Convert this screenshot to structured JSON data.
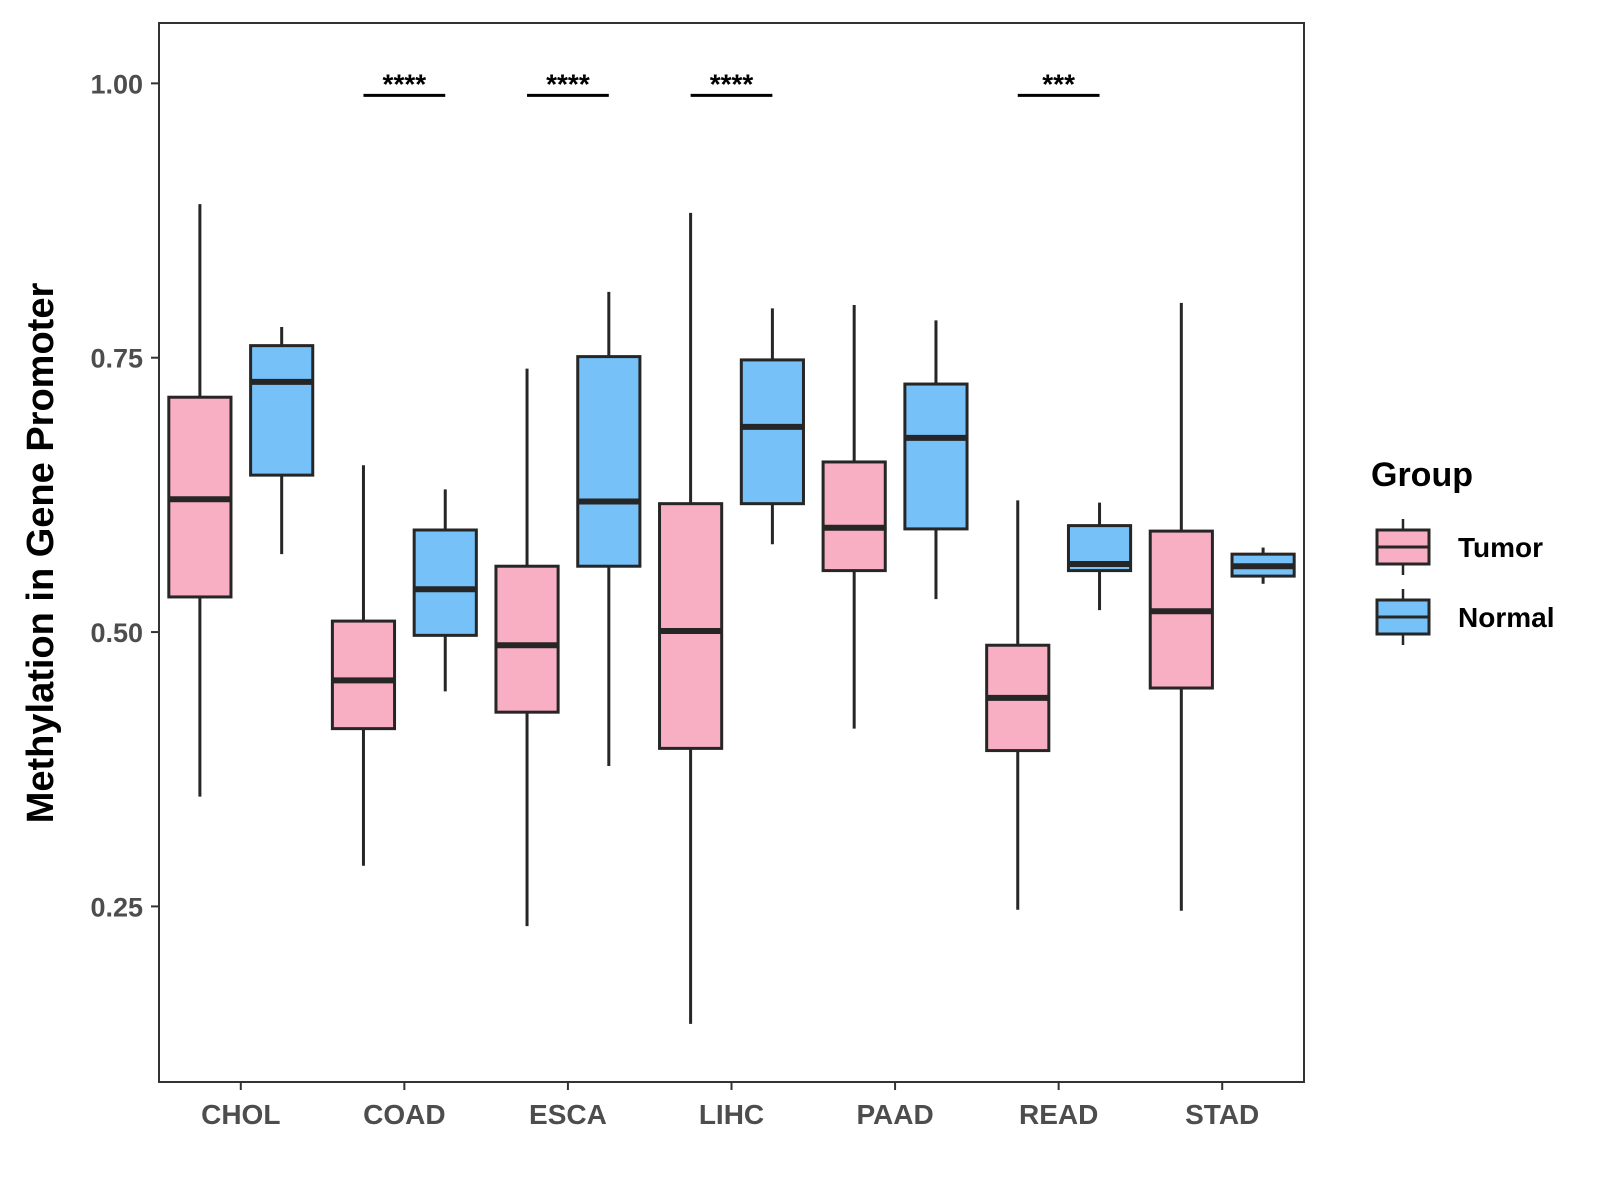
{
  "chart_data": {
    "type": "boxplot",
    "ylabel": "Methylation in Gene Promoter",
    "xlabel": "",
    "ylim": [
      0.09,
      1.055
    ],
    "yticks": [
      {
        "value": 0.25,
        "label": "0.25"
      },
      {
        "value": 0.5,
        "label": "0.50"
      },
      {
        "value": 0.75,
        "label": "0.75"
      },
      {
        "value": 1.0,
        "label": "1.00"
      }
    ],
    "grid": false,
    "categories": [
      "CHOL",
      "COAD",
      "ESCA",
      "LIHC",
      "PAAD",
      "READ",
      "STAD"
    ],
    "series": [
      {
        "name": "Tumor",
        "color": "#F9AFC3",
        "boxes": [
          {
            "min": 0.35,
            "q1": 0.532,
            "median": 0.621,
            "q3": 0.714,
            "max": 0.89
          },
          {
            "min": 0.287,
            "q1": 0.412,
            "median": 0.456,
            "q3": 0.51,
            "max": 0.652
          },
          {
            "min": 0.232,
            "q1": 0.427,
            "median": 0.488,
            "q3": 0.56,
            "max": 0.74
          },
          {
            "min": 0.143,
            "q1": 0.394,
            "median": 0.501,
            "q3": 0.617,
            "max": 0.882
          },
          {
            "min": 0.412,
            "q1": 0.556,
            "median": 0.595,
            "q3": 0.655,
            "max": 0.798
          },
          {
            "min": 0.247,
            "q1": 0.392,
            "median": 0.44,
            "q3": 0.488,
            "max": 0.62
          },
          {
            "min": 0.246,
            "q1": 0.449,
            "median": 0.519,
            "q3": 0.592,
            "max": 0.8
          }
        ]
      },
      {
        "name": "Normal",
        "color": "#75C1F8",
        "boxes": [
          {
            "min": 0.571,
            "q1": 0.643,
            "median": 0.728,
            "q3": 0.761,
            "max": 0.778
          },
          {
            "min": 0.446,
            "q1": 0.497,
            "median": 0.539,
            "q3": 0.593,
            "max": 0.63
          },
          {
            "min": 0.378,
            "q1": 0.56,
            "median": 0.619,
            "q3": 0.751,
            "max": 0.81
          },
          {
            "min": 0.58,
            "q1": 0.617,
            "median": 0.687,
            "q3": 0.748,
            "max": 0.795
          },
          {
            "min": 0.53,
            "q1": 0.594,
            "median": 0.677,
            "q3": 0.726,
            "max": 0.784
          },
          {
            "min": 0.52,
            "q1": 0.556,
            "median": 0.562,
            "q3": 0.597,
            "max": 0.618
          },
          {
            "min": 0.544,
            "q1": 0.551,
            "median": 0.56,
            "q3": 0.571,
            "max": 0.577
          }
        ]
      }
    ],
    "significance": [
      {
        "category": "COAD",
        "label": "****",
        "y": 0.989
      },
      {
        "category": "ESCA",
        "label": "****",
        "y": 0.989
      },
      {
        "category": "LIHC",
        "label": "****",
        "y": 0.989
      },
      {
        "category": "READ",
        "label": "***",
        "y": 0.989
      }
    ],
    "legend": {
      "title": "Group",
      "position": "right",
      "entries": [
        {
          "label": "Tumor",
          "color": "#F9AFC3"
        },
        {
          "label": "Normal",
          "color": "#75C1F8"
        }
      ]
    }
  }
}
